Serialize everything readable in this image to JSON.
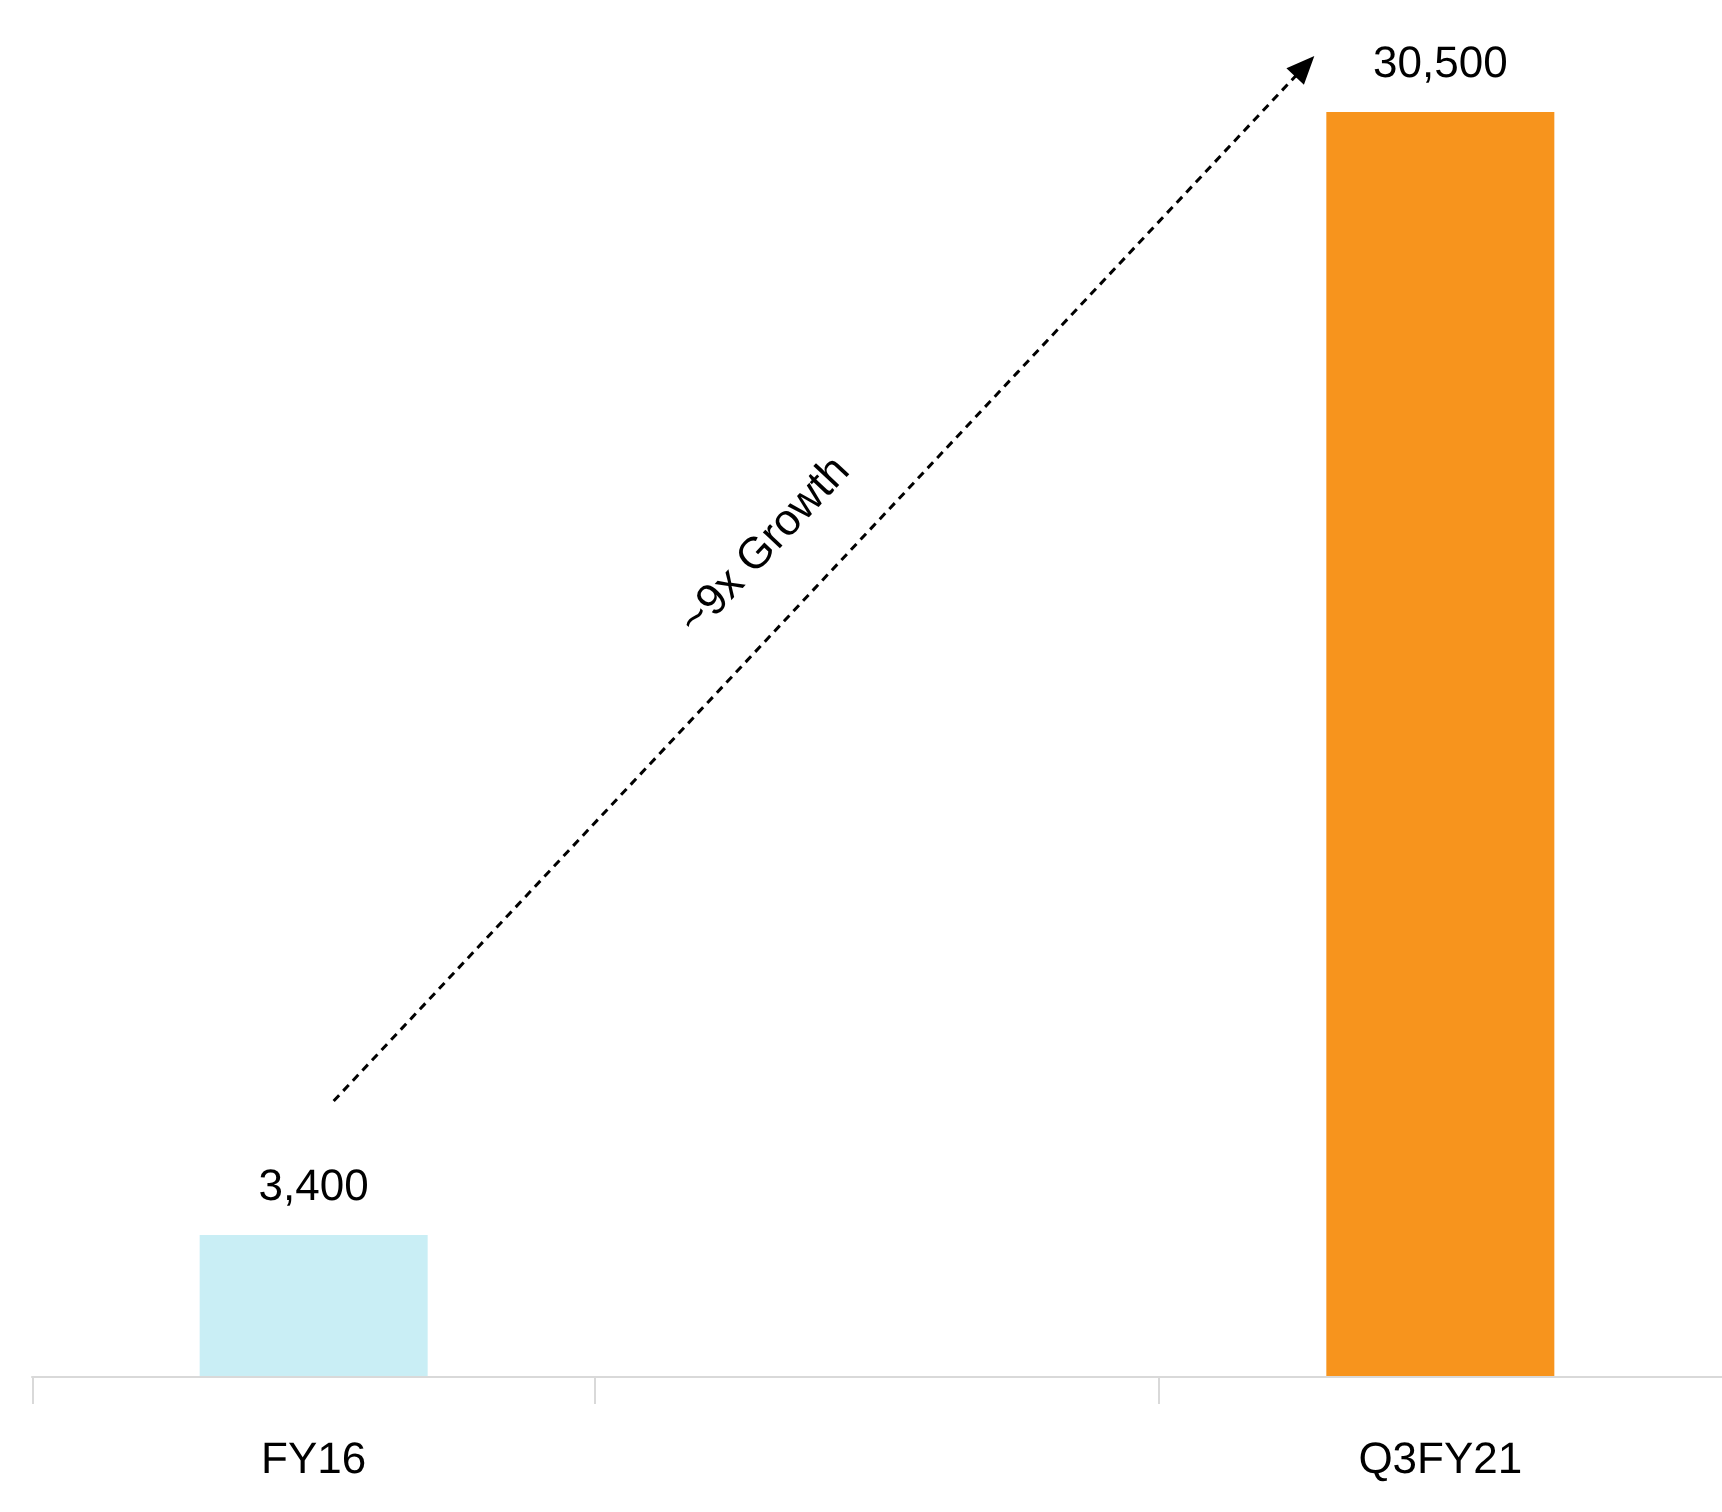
{
  "chart_data": {
    "type": "bar",
    "categories": [
      "FY16",
      null,
      "Q3FY21"
    ],
    "values": [
      3400,
      null,
      30500
    ],
    "value_labels": [
      "3,400",
      null,
      "30,500"
    ],
    "colors": [
      "#c9eef5",
      null,
      "#f7941d"
    ],
    "tick_labels": "x",
    "annotations": [
      "~9x Growth"
    ]
  }
}
